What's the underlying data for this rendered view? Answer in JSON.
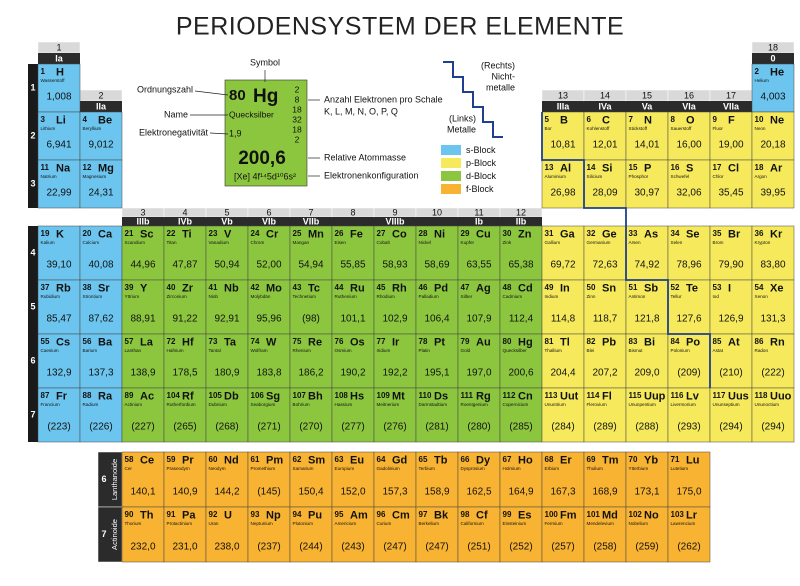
{
  "title": "PERIODENSYSTEM DER ELEMENTE",
  "group_numbers": [
    1,
    2,
    3,
    4,
    5,
    6,
    7,
    8,
    9,
    10,
    11,
    12,
    13,
    14,
    15,
    16,
    17,
    18
  ],
  "group_labels": [
    "Ia",
    "IIa",
    "IIIb",
    "IVb",
    "Vb",
    "VIb",
    "VIIb",
    "VIIIb",
    "Ib",
    "IIb",
    "IIIa",
    "IVa",
    "Va",
    "VIa",
    "VIIa",
    "0"
  ],
  "periods": [
    1,
    2,
    3,
    4,
    5,
    6,
    7
  ],
  "f_rows": [
    {
      "period": 6,
      "name": "Lanthanoide"
    },
    {
      "period": 7,
      "name": "Actinoide"
    }
  ],
  "legend": [
    {
      "label": "s-Block",
      "color": "#6cc5ee"
    },
    {
      "label": "p-Block",
      "color": "#f6ea5c"
    },
    {
      "label": "d-Block",
      "color": "#8cc63f"
    },
    {
      "label": "f-Block",
      "color": "#f8b333"
    }
  ],
  "nonmetals": [
    "(Rechts)",
    "Nicht-",
    "metalle"
  ],
  "metals": [
    "(Links)",
    "Metalle"
  ],
  "key": {
    "symbol": "Symbol",
    "number": "Ordnungszahl",
    "name": "Name",
    "en": "Elektronegativität",
    "shells": "Anzahl Elektronen pro Schale",
    "shell_letters": "K, L, M, N, O, P, Q",
    "mass": "Relative Atommasse",
    "config": "Elektronenkonfiguration",
    "example": {
      "number": 80,
      "symbol": "Hg",
      "name": "Quecksilber",
      "en": "1,9",
      "shells": [
        2,
        8,
        18,
        32,
        18,
        2
      ],
      "mass": "200,6",
      "config": "[Xe] 4f¹⁴5d¹⁰6s²"
    }
  },
  "elements": [
    {
      "n": 1,
      "s": "H",
      "name": "Wasserstoff",
      "m": "1,008"
    },
    {
      "n": 2,
      "s": "He",
      "name": "Helium",
      "m": "4,003"
    },
    {
      "n": 3,
      "s": "Li",
      "name": "Lithium",
      "m": "6,941"
    },
    {
      "n": 4,
      "s": "Be",
      "name": "Beryllium",
      "m": "9,012"
    },
    {
      "n": 5,
      "s": "B",
      "name": "Bor",
      "m": "10,81"
    },
    {
      "n": 6,
      "s": "C",
      "name": "Kohlenstoff",
      "m": "12,01"
    },
    {
      "n": 7,
      "s": "N",
      "name": "Stickstoff",
      "m": "14,01"
    },
    {
      "n": 8,
      "s": "O",
      "name": "Sauerstoff",
      "m": "16,00"
    },
    {
      "n": 9,
      "s": "F",
      "name": "Fluor",
      "m": "19,00"
    },
    {
      "n": 10,
      "s": "Ne",
      "name": "Neon",
      "m": "20,18"
    },
    {
      "n": 11,
      "s": "Na",
      "name": "Natrium",
      "m": "22,99"
    },
    {
      "n": 12,
      "s": "Mg",
      "name": "Magnesium",
      "m": "24,31"
    },
    {
      "n": 13,
      "s": "Al",
      "name": "Aluminium",
      "m": "26,98"
    },
    {
      "n": 14,
      "s": "Si",
      "name": "Silicium",
      "m": "28,09"
    },
    {
      "n": 15,
      "s": "P",
      "name": "Phosphor",
      "m": "30,97"
    },
    {
      "n": 16,
      "s": "S",
      "name": "Schwefel",
      "m": "32,06"
    },
    {
      "n": 17,
      "s": "Cl",
      "name": "Chlor",
      "m": "35,45"
    },
    {
      "n": 18,
      "s": "Ar",
      "name": "Argon",
      "m": "39,95"
    },
    {
      "n": 19,
      "s": "K",
      "name": "Kalium",
      "m": "39,10"
    },
    {
      "n": 20,
      "s": "Ca",
      "name": "Calcium",
      "m": "40,08"
    },
    {
      "n": 21,
      "s": "Sc",
      "name": "Scandium",
      "m": "44,96"
    },
    {
      "n": 22,
      "s": "Ti",
      "name": "Titan",
      "m": "47,87"
    },
    {
      "n": 23,
      "s": "V",
      "name": "Vanadium",
      "m": "50,94"
    },
    {
      "n": 24,
      "s": "Cr",
      "name": "Chrom",
      "m": "52,00"
    },
    {
      "n": 25,
      "s": "Mn",
      "name": "Mangan",
      "m": "54,94"
    },
    {
      "n": 26,
      "s": "Fe",
      "name": "Eisen",
      "m": "55,85"
    },
    {
      "n": 27,
      "s": "Co",
      "name": "Cobalt",
      "m": "58,93"
    },
    {
      "n": 28,
      "s": "Ni",
      "name": "Nickel",
      "m": "58,69"
    },
    {
      "n": 29,
      "s": "Cu",
      "name": "Kupfer",
      "m": "63,55"
    },
    {
      "n": 30,
      "s": "Zn",
      "name": "Zink",
      "m": "65,38"
    },
    {
      "n": 31,
      "s": "Ga",
      "name": "Gallium",
      "m": "69,72"
    },
    {
      "n": 32,
      "s": "Ge",
      "name": "Germanium",
      "m": "72,63"
    },
    {
      "n": 33,
      "s": "As",
      "name": "Arsen",
      "m": "74,92"
    },
    {
      "n": 34,
      "s": "Se",
      "name": "Selen",
      "m": "78,96"
    },
    {
      "n": 35,
      "s": "Br",
      "name": "Brom",
      "m": "79,90"
    },
    {
      "n": 36,
      "s": "Kr",
      "name": "Krypton",
      "m": "83,80"
    },
    {
      "n": 37,
      "s": "Rb",
      "name": "Rubidium",
      "m": "85,47"
    },
    {
      "n": 38,
      "s": "Sr",
      "name": "Strontium",
      "m": "87,62"
    },
    {
      "n": 39,
      "s": "Y",
      "name": "Yttrium",
      "m": "88,91"
    },
    {
      "n": 40,
      "s": "Zr",
      "name": "Zirconium",
      "m": "91,22"
    },
    {
      "n": 41,
      "s": "Nb",
      "name": "Niob",
      "m": "92,91"
    },
    {
      "n": 42,
      "s": "Mo",
      "name": "Molybdän",
      "m": "95,96"
    },
    {
      "n": 43,
      "s": "Tc",
      "name": "Technetium",
      "m": "(98)"
    },
    {
      "n": 44,
      "s": "Ru",
      "name": "Ruthenium",
      "m": "101,1"
    },
    {
      "n": 45,
      "s": "Rh",
      "name": "Rhodium",
      "m": "102,9"
    },
    {
      "n": 46,
      "s": "Pd",
      "name": "Palladium",
      "m": "106,4"
    },
    {
      "n": 47,
      "s": "Ag",
      "name": "Silber",
      "m": "107,9"
    },
    {
      "n": 48,
      "s": "Cd",
      "name": "Cadmium",
      "m": "112,4"
    },
    {
      "n": 49,
      "s": "In",
      "name": "Indium",
      "m": "114,8"
    },
    {
      "n": 50,
      "s": "Sn",
      "name": "Zinn",
      "m": "118,7"
    },
    {
      "n": 51,
      "s": "Sb",
      "name": "Antimon",
      "m": "121,8"
    },
    {
      "n": 52,
      "s": "Te",
      "name": "Tellur",
      "m": "127,6"
    },
    {
      "n": 53,
      "s": "I",
      "name": "Iod",
      "m": "126,9"
    },
    {
      "n": 54,
      "s": "Xe",
      "name": "Xenon",
      "m": "131,3"
    },
    {
      "n": 55,
      "s": "Cs",
      "name": "Caesium",
      "m": "132,9"
    },
    {
      "n": 56,
      "s": "Ba",
      "name": "Barium",
      "m": "137,3"
    },
    {
      "n": 57,
      "s": "La",
      "name": "Lanthan",
      "m": "138,9"
    },
    {
      "n": 58,
      "s": "Ce",
      "name": "Cer",
      "m": "140,1"
    },
    {
      "n": 59,
      "s": "Pr",
      "name": "Praseodym",
      "m": "140,9"
    },
    {
      "n": 60,
      "s": "Nd",
      "name": "Neodym",
      "m": "144,2"
    },
    {
      "n": 61,
      "s": "Pm",
      "name": "Promethium",
      "m": "(145)"
    },
    {
      "n": 62,
      "s": "Sm",
      "name": "Samarium",
      "m": "150,4"
    },
    {
      "n": 63,
      "s": "Eu",
      "name": "Europium",
      "m": "152,0"
    },
    {
      "n": 64,
      "s": "Gd",
      "name": "Gadolinium",
      "m": "157,3"
    },
    {
      "n": 65,
      "s": "Tb",
      "name": "Terbium",
      "m": "158,9"
    },
    {
      "n": 66,
      "s": "Dy",
      "name": "Dysprosium",
      "m": "162,5"
    },
    {
      "n": 67,
      "s": "Ho",
      "name": "Holmium",
      "m": "164,9"
    },
    {
      "n": 68,
      "s": "Er",
      "name": "Erbium",
      "m": "167,3"
    },
    {
      "n": 69,
      "s": "Tm",
      "name": "Thulium",
      "m": "168,9"
    },
    {
      "n": 70,
      "s": "Yb",
      "name": "Ytterbium",
      "m": "173,1"
    },
    {
      "n": 71,
      "s": "Lu",
      "name": "Lutetium",
      "m": "175,0"
    },
    {
      "n": 72,
      "s": "Hf",
      "name": "Hafnium",
      "m": "178,5"
    },
    {
      "n": 73,
      "s": "Ta",
      "name": "Tantal",
      "m": "180,9"
    },
    {
      "n": 74,
      "s": "W",
      "name": "Wolfram",
      "m": "183,8"
    },
    {
      "n": 75,
      "s": "Re",
      "name": "Rhenium",
      "m": "186,2"
    },
    {
      "n": 76,
      "s": "Os",
      "name": "Osmium",
      "m": "190,2"
    },
    {
      "n": 77,
      "s": "Ir",
      "name": "Iridium",
      "m": "192,2"
    },
    {
      "n": 78,
      "s": "Pt",
      "name": "Platin",
      "m": "195,1"
    },
    {
      "n": 79,
      "s": "Au",
      "name": "Gold",
      "m": "197,0"
    },
    {
      "n": 80,
      "s": "Hg",
      "name": "Quecksilber",
      "m": "200,6"
    },
    {
      "n": 81,
      "s": "Tl",
      "name": "Thallium",
      "m": "204,4"
    },
    {
      "n": 82,
      "s": "Pb",
      "name": "Blei",
      "m": "207,2"
    },
    {
      "n": 83,
      "s": "Bi",
      "name": "Bismut",
      "m": "209,0"
    },
    {
      "n": 84,
      "s": "Po",
      "name": "Polonium",
      "m": "(209)"
    },
    {
      "n": 85,
      "s": "At",
      "name": "Astat",
      "m": "(210)"
    },
    {
      "n": 86,
      "s": "Rn",
      "name": "Radon",
      "m": "(222)"
    },
    {
      "n": 87,
      "s": "Fr",
      "name": "Francium",
      "m": "(223)"
    },
    {
      "n": 88,
      "s": "Ra",
      "name": "Radium",
      "m": "(226)"
    },
    {
      "n": 89,
      "s": "Ac",
      "name": "Actinium",
      "m": "(227)"
    },
    {
      "n": 90,
      "s": "Th",
      "name": "Thorium",
      "m": "232,0"
    },
    {
      "n": 91,
      "s": "Pa",
      "name": "Protactinium",
      "m": "231,0"
    },
    {
      "n": 92,
      "s": "U",
      "name": "Uran",
      "m": "238,0"
    },
    {
      "n": 93,
      "s": "Np",
      "name": "Neptunium",
      "m": "(237)"
    },
    {
      "n": 94,
      "s": "Pu",
      "name": "Plutonium",
      "m": "(244)"
    },
    {
      "n": 95,
      "s": "Am",
      "name": "Americium",
      "m": "(243)"
    },
    {
      "n": 96,
      "s": "Cm",
      "name": "Curium",
      "m": "(247)"
    },
    {
      "n": 97,
      "s": "Bk",
      "name": "Berkelium",
      "m": "(247)"
    },
    {
      "n": 98,
      "s": "Cf",
      "name": "Californium",
      "m": "(251)"
    },
    {
      "n": 99,
      "s": "Es",
      "name": "Einsteinium",
      "m": "(252)"
    },
    {
      "n": 100,
      "s": "Fm",
      "name": "Fermium",
      "m": "(257)"
    },
    {
      "n": 101,
      "s": "Md",
      "name": "Mendelevium",
      "m": "(258)"
    },
    {
      "n": 102,
      "s": "No",
      "name": "Nobelium",
      "m": "(259)"
    },
    {
      "n": 103,
      "s": "Lr",
      "name": "Lawrencium",
      "m": "(262)"
    },
    {
      "n": 104,
      "s": "Rf",
      "name": "Rutherfordium",
      "m": "(265)"
    },
    {
      "n": 105,
      "s": "Db",
      "name": "Dubnium",
      "m": "(268)"
    },
    {
      "n": 106,
      "s": "Sg",
      "name": "Seaborgium",
      "m": "(271)"
    },
    {
      "n": 107,
      "s": "Bh",
      "name": "Bohrium",
      "m": "(270)"
    },
    {
      "n": 108,
      "s": "Hs",
      "name": "Hassium",
      "m": "(277)"
    },
    {
      "n": 109,
      "s": "Mt",
      "name": "Meitnerium",
      "m": "(276)"
    },
    {
      "n": 110,
      "s": "Ds",
      "name": "Darmstadtium",
      "m": "(281)"
    },
    {
      "n": 111,
      "s": "Rg",
      "name": "Roentgenium",
      "m": "(280)"
    },
    {
      "n": 112,
      "s": "Cn",
      "name": "Copernicium",
      "m": "(285)"
    },
    {
      "n": 113,
      "s": "Uut",
      "name": "Ununtrium",
      "m": "(284)"
    },
    {
      "n": 114,
      "s": "Fl",
      "name": "Flerovium",
      "m": "(289)"
    },
    {
      "n": 115,
      "s": "Uup",
      "name": "Ununpentium",
      "m": "(288)"
    },
    {
      "n": 116,
      "s": "Lv",
      "name": "Livermorium",
      "m": "(293)"
    },
    {
      "n": 117,
      "s": "Uus",
      "name": "Ununseptium",
      "m": "(294)"
    },
    {
      "n": 118,
      "s": "Uuo",
      "name": "Ununoctium",
      "m": "(294)"
    }
  ]
}
